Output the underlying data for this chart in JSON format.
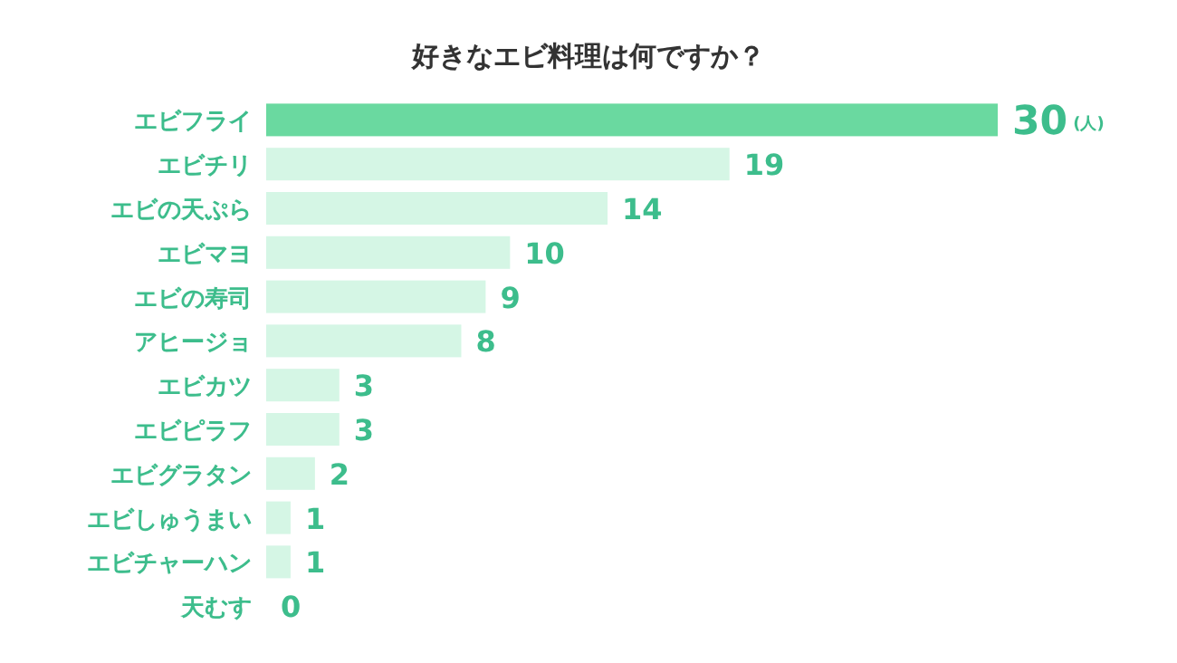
{
  "chart_data": {
    "type": "bar",
    "orientation": "horizontal",
    "title": "好きなエビ料理は何ですか？",
    "categories": [
      "エビフライ",
      "エビチリ",
      "エビの天ぷら",
      "エビマヨ",
      "エビの寿司",
      "アヒージョ",
      "エビカツ",
      "エビピラフ",
      "エビグラタン",
      "エビしゅうまい",
      "エビチャーハン",
      "天むす"
    ],
    "values": [
      30,
      19,
      14,
      10,
      9,
      8,
      3,
      3,
      2,
      1,
      1,
      0
    ],
    "colors": [
      "#6ad9a0",
      "#d5f6e5",
      "#d5f6e5",
      "#d5f6e5",
      "#d5f6e5",
      "#d5f6e5",
      "#d5f6e5",
      "#d5f6e5",
      "#d5f6e5",
      "#d5f6e5",
      "#d5f6e5",
      "#d5f6e5"
    ],
    "data_labels": true,
    "annotations": [
      "(人)"
    ]
  }
}
